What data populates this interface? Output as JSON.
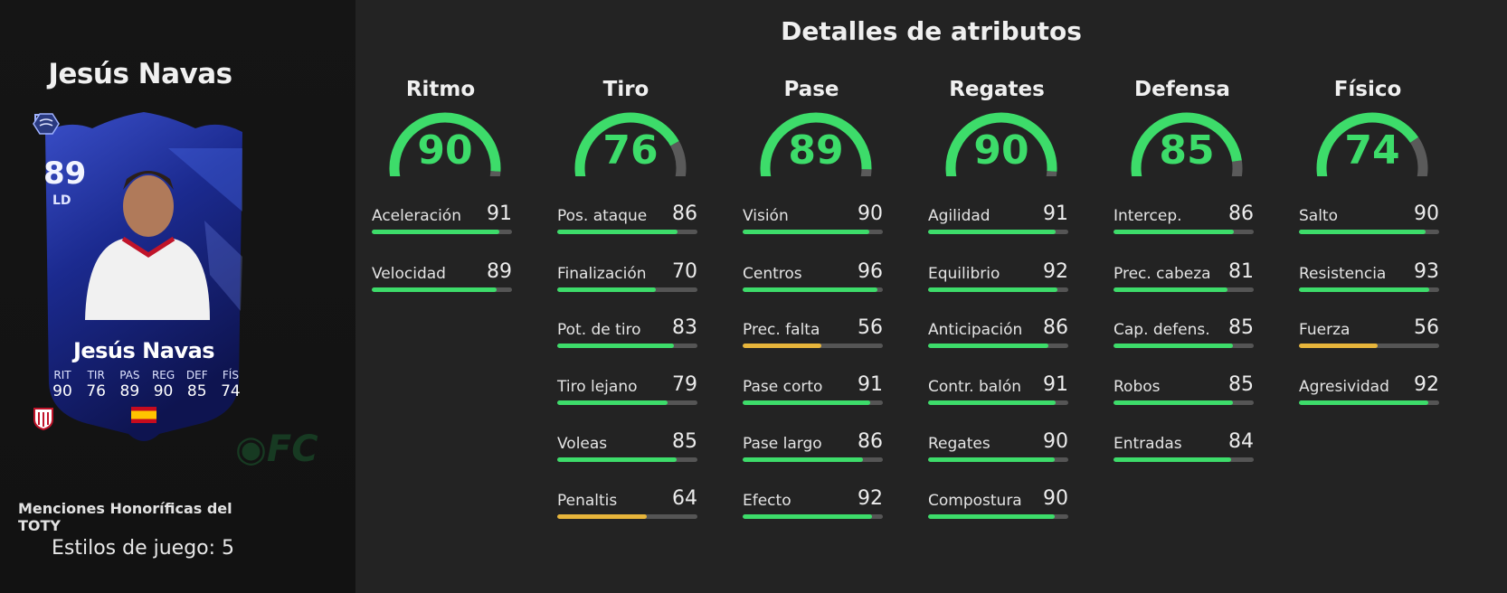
{
  "colors": {
    "high": "#3ddc6a",
    "mid": "#e7b53b",
    "track": "#555555"
  },
  "player": {
    "name": "Jesús Navas",
    "promo": "Menciones Honoríficas del TOTY",
    "playstyles": "Estilos de juego: 5",
    "card": {
      "rating": "89",
      "position": "LD",
      "name": "Jesús Navas",
      "stats": [
        {
          "label": "RIT",
          "value": "90"
        },
        {
          "label": "TIR",
          "value": "76"
        },
        {
          "label": "PAS",
          "value": "89"
        },
        {
          "label": "REG",
          "value": "90"
        },
        {
          "label": "DEF",
          "value": "85"
        },
        {
          "label": "FÍS",
          "value": "74"
        }
      ],
      "icons": [
        "toty-icon",
        "spain-flag-icon",
        "laliga-icon",
        "sevilla-crest-icon"
      ]
    }
  },
  "attributes": {
    "title": "Detalles de atributos",
    "categories": [
      {
        "name": "Ritmo",
        "value": 90,
        "subs": [
          {
            "label": "Aceleración",
            "value": 91
          },
          {
            "label": "Velocidad",
            "value": 89
          }
        ]
      },
      {
        "name": "Tiro",
        "value": 76,
        "subs": [
          {
            "label": "Pos. ataque",
            "value": 86
          },
          {
            "label": "Finalización",
            "value": 70
          },
          {
            "label": "Pot. de tiro",
            "value": 83
          },
          {
            "label": "Tiro lejano",
            "value": 79
          },
          {
            "label": "Voleas",
            "value": 85
          },
          {
            "label": "Penaltis",
            "value": 64
          }
        ]
      },
      {
        "name": "Pase",
        "value": 89,
        "subs": [
          {
            "label": "Visión",
            "value": 90
          },
          {
            "label": "Centros",
            "value": 96
          },
          {
            "label": "Prec. falta",
            "value": 56
          },
          {
            "label": "Pase corto",
            "value": 91
          },
          {
            "label": "Pase largo",
            "value": 86
          },
          {
            "label": "Efecto",
            "value": 92
          }
        ]
      },
      {
        "name": "Regates",
        "value": 90,
        "subs": [
          {
            "label": "Agilidad",
            "value": 91
          },
          {
            "label": "Equilibrio",
            "value": 92
          },
          {
            "label": "Anticipación",
            "value": 86
          },
          {
            "label": "Contr. balón",
            "value": 91
          },
          {
            "label": "Regates",
            "value": 90
          },
          {
            "label": "Compostura",
            "value": 90
          }
        ]
      },
      {
        "name": "Defensa",
        "value": 85,
        "subs": [
          {
            "label": "Intercep.",
            "value": 86
          },
          {
            "label": "Prec. cabeza",
            "value": 81
          },
          {
            "label": "Cap. defens.",
            "value": 85
          },
          {
            "label": "Robos",
            "value": 85
          },
          {
            "label": "Entradas",
            "value": 84
          }
        ]
      },
      {
        "name": "Físico",
        "value": 74,
        "subs": [
          {
            "label": "Salto",
            "value": 90
          },
          {
            "label": "Resistencia",
            "value": 93
          },
          {
            "label": "Fuerza",
            "value": 56
          },
          {
            "label": "Agresividad",
            "value": 92
          }
        ]
      }
    ]
  }
}
